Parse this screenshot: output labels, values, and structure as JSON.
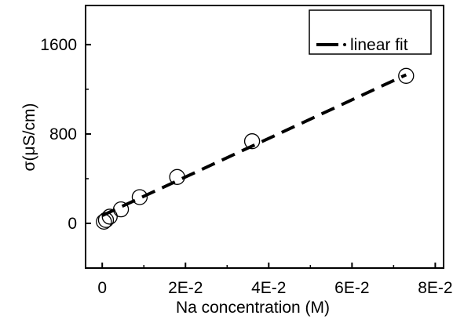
{
  "chart_data": {
    "type": "scatter",
    "xlabel": "Na concentration (M)",
    "ylabel": "σ(μS/cm)",
    "xlim": [
      -0.004,
      0.082
    ],
    "ylim": [
      -400,
      1950
    ],
    "xticks": [
      0,
      0.02,
      0.04,
      0.06,
      0.08
    ],
    "xtick_labels": [
      "0",
      "2E-2",
      "4E-2",
      "6E-2",
      "8E-2"
    ],
    "yticks": [
      0,
      800,
      1600
    ],
    "ytick_labels": [
      "0",
      "800",
      "1600"
    ],
    "grid": false,
    "legend": {
      "position": "top-right",
      "entries": [
        "linear fit"
      ]
    },
    "series": [
      {
        "kind": "points",
        "x": [
          0.0004,
          0.0009,
          0.0018,
          0.0045,
          0.009,
          0.018,
          0.036,
          0.073
        ],
        "y": [
          15,
          30,
          60,
          125,
          235,
          415,
          735,
          1320
        ]
      },
      {
        "name": "linear fit",
        "kind": "line",
        "x": [
          0,
          0.073
        ],
        "y": [
          70,
          1330
        ]
      }
    ]
  }
}
